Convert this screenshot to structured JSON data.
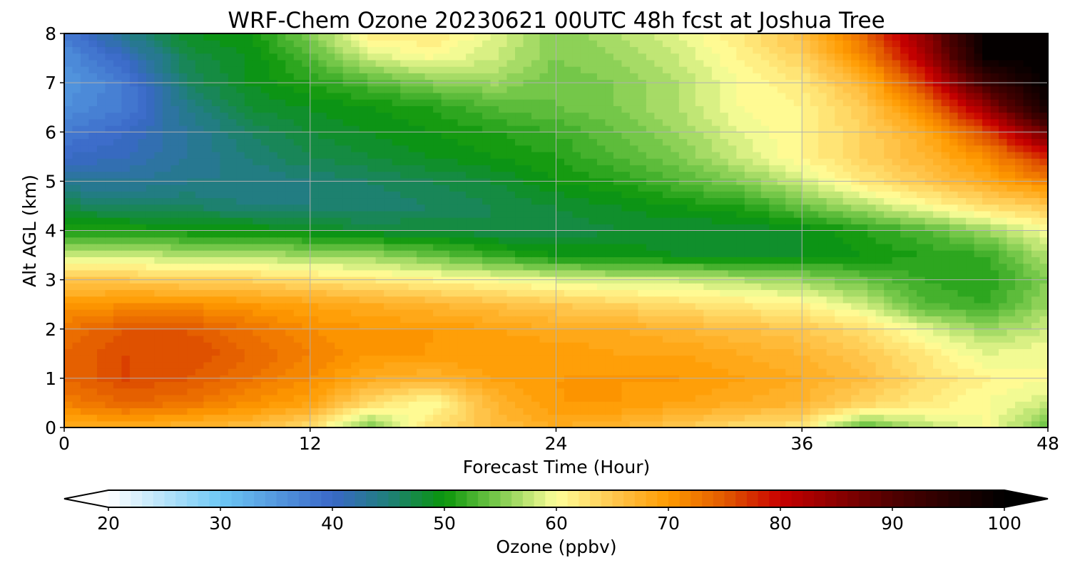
{
  "chart_data": {
    "type": "heatmap",
    "subtype": "filled-contour",
    "title": "WRF-Chem Ozone  20230621 00UTC 48h fcst at Joshua Tree",
    "xlabel": "Forecast Time (Hour)",
    "ylabel": "Alt AGL (km)",
    "xlim": [
      0,
      48
    ],
    "ylim": [
      0,
      8
    ],
    "x_ticks": [
      0,
      12,
      24,
      36,
      48
    ],
    "y_ticks": [
      0,
      1,
      2,
      3,
      4,
      5,
      6,
      7,
      8
    ],
    "grid": true,
    "colorbar": {
      "label": "Ozone  (ppbv)",
      "orientation": "horizontal",
      "location": "bottom",
      "range": [
        20,
        100
      ],
      "extend": "both",
      "ticks": [
        20,
        30,
        40,
        50,
        60,
        70,
        80,
        90,
        100
      ],
      "color_stops": [
        {
          "value": 20,
          "color": "#ffffff"
        },
        {
          "value": 30,
          "color": "#6ec8f5"
        },
        {
          "value": 40,
          "color": "#3a68c8"
        },
        {
          "value": 45,
          "color": "#1f7f7a"
        },
        {
          "value": 50,
          "color": "#0a960a"
        },
        {
          "value": 55,
          "color": "#80cc50"
        },
        {
          "value": 60,
          "color": "#ffff9a"
        },
        {
          "value": 65,
          "color": "#ffc850"
        },
        {
          "value": 70,
          "color": "#ff9a00"
        },
        {
          "value": 75,
          "color": "#e25a00"
        },
        {
          "value": 80,
          "color": "#c80000"
        },
        {
          "value": 90,
          "color": "#500000"
        },
        {
          "value": 100,
          "color": "#000000"
        }
      ]
    },
    "x": [
      0,
      3,
      6,
      9,
      12,
      15,
      18,
      21,
      24,
      27,
      30,
      33,
      36,
      39,
      42,
      45,
      48
    ],
    "y": [
      0,
      0.5,
      1,
      1.5,
      2,
      2.5,
      3,
      3.5,
      4,
      4.5,
      5,
      5.5,
      6,
      6.5,
      7,
      7.5,
      8
    ],
    "z": [
      [
        68,
        68,
        67,
        66,
        63,
        54,
        63,
        66,
        68,
        67,
        65,
        63,
        62,
        53,
        57,
        60,
        54
      ],
      [
        72,
        74,
        73,
        71,
        69,
        63,
        60,
        67,
        70,
        70,
        69,
        68,
        67,
        64,
        62,
        60,
        58
      ],
      [
        74,
        76,
        75,
        73,
        71,
        68,
        67,
        69,
        70,
        70,
        70,
        69,
        68,
        66,
        63,
        61,
        60
      ],
      [
        74,
        76,
        76,
        74,
        72,
        70,
        70,
        70,
        70,
        69,
        69,
        68,
        67,
        65,
        62,
        59,
        60
      ],
      [
        73,
        75,
        75,
        73,
        71,
        70,
        70,
        69,
        68,
        68,
        67,
        66,
        65,
        63,
        59,
        56,
        58
      ],
      [
        70,
        71,
        71,
        70,
        69,
        68,
        67,
        66,
        65,
        64,
        63,
        62,
        61,
        58,
        53,
        52,
        56
      ],
      [
        65,
        65,
        64,
        64,
        63,
        62,
        61,
        60,
        59,
        58,
        58,
        57,
        56,
        54,
        52,
        51,
        55
      ],
      [
        58,
        58,
        57,
        57,
        56,
        56,
        54,
        52,
        50,
        50,
        49,
        49,
        49,
        50,
        51,
        52,
        57
      ],
      [
        51,
        51,
        50,
        50,
        49,
        48,
        48,
        47,
        47,
        48,
        48,
        48,
        49,
        51,
        53,
        56,
        60
      ],
      [
        47,
        46,
        46,
        45,
        45,
        45,
        46,
        47,
        48,
        49,
        50,
        51,
        54,
        57,
        60,
        63,
        65
      ],
      [
        43,
        43,
        44,
        44,
        45,
        46,
        47,
        48,
        50,
        51,
        53,
        55,
        58,
        62,
        65,
        68,
        72
      ],
      [
        40,
        41,
        43,
        45,
        47,
        48,
        49,
        50,
        51,
        53,
        55,
        58,
        61,
        64,
        67,
        71,
        78
      ],
      [
        38,
        40,
        43,
        46,
        48,
        49,
        50,
        51,
        52,
        54,
        56,
        59,
        61,
        64,
        68,
        76,
        88
      ],
      [
        36,
        38,
        44,
        48,
        49,
        50,
        51,
        53,
        54,
        55,
        57,
        60,
        61,
        65,
        72,
        84,
        98
      ],
      [
        35,
        38,
        46,
        49,
        51,
        53,
        55,
        56,
        54,
        55,
        57,
        60,
        62,
        67,
        77,
        92,
        100
      ],
      [
        36,
        40,
        47,
        49,
        53,
        58,
        60,
        58,
        55,
        56,
        58,
        61,
        64,
        71,
        82,
        99,
        100
      ],
      [
        38,
        44,
        49,
        50,
        55,
        62,
        62,
        59,
        55,
        57,
        59,
        62,
        66,
        74,
        85,
        100,
        100
      ]
    ]
  }
}
